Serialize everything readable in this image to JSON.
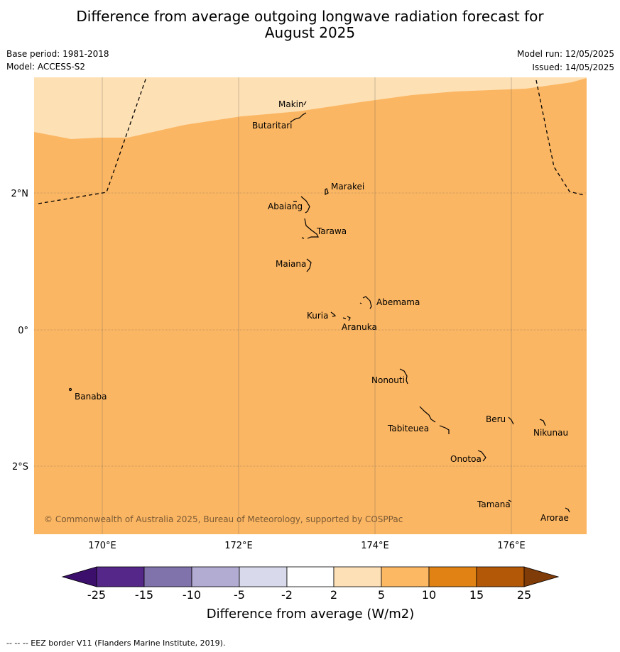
{
  "title_line1": "Difference from average outgoing longwave radiation forecast for",
  "title_line2": "August 2025",
  "base_period": "Base period: 1981-2018",
  "model": "Model: ACCESS-S2",
  "model_run": "Model run: 12/05/2025",
  "issued": "Issued: 14/05/2025",
  "map": {
    "lat_labels": [
      "2°N",
      "0°",
      "2°S"
    ],
    "lon_labels": [
      "170°E",
      "172°E",
      "174°E",
      "176°E"
    ],
    "copyright": "© Commonwealth of Australia 2025, Bureau of Meteorology, supported by COSPPac",
    "islands": [
      "Makin",
      "Butaritari",
      "Marakei",
      "Abaiang",
      "Tarawa",
      "Maiana",
      "Abemama",
      "Kuria",
      "Aranuka",
      "Nonouti",
      "Banaba",
      "Beru",
      "Nikunau",
      "Tabiteuea",
      "Onotoa",
      "Tamana",
      "Arorae"
    ],
    "fill_colors": {
      "band_2_to_5": "#fde0b4",
      "band_5_to_10": "#fbb663"
    }
  },
  "colorbar": {
    "label": "Difference from average (W/m2)",
    "ticks": [
      "-25",
      "-15",
      "-10",
      "-5",
      "-2",
      "2",
      "5",
      "10",
      "15",
      "25"
    ],
    "colors": [
      "#3b0f6b",
      "#542788",
      "#8073ac",
      "#b2abd2",
      "#d8daeb",
      "#ffffff",
      "#fee0b6",
      "#fdb863",
      "#e08214",
      "#b35806",
      "#7f3b08"
    ]
  },
  "footnote": "--  --  -- EEZ border V11 (Flanders Marine Institute, 2019)."
}
